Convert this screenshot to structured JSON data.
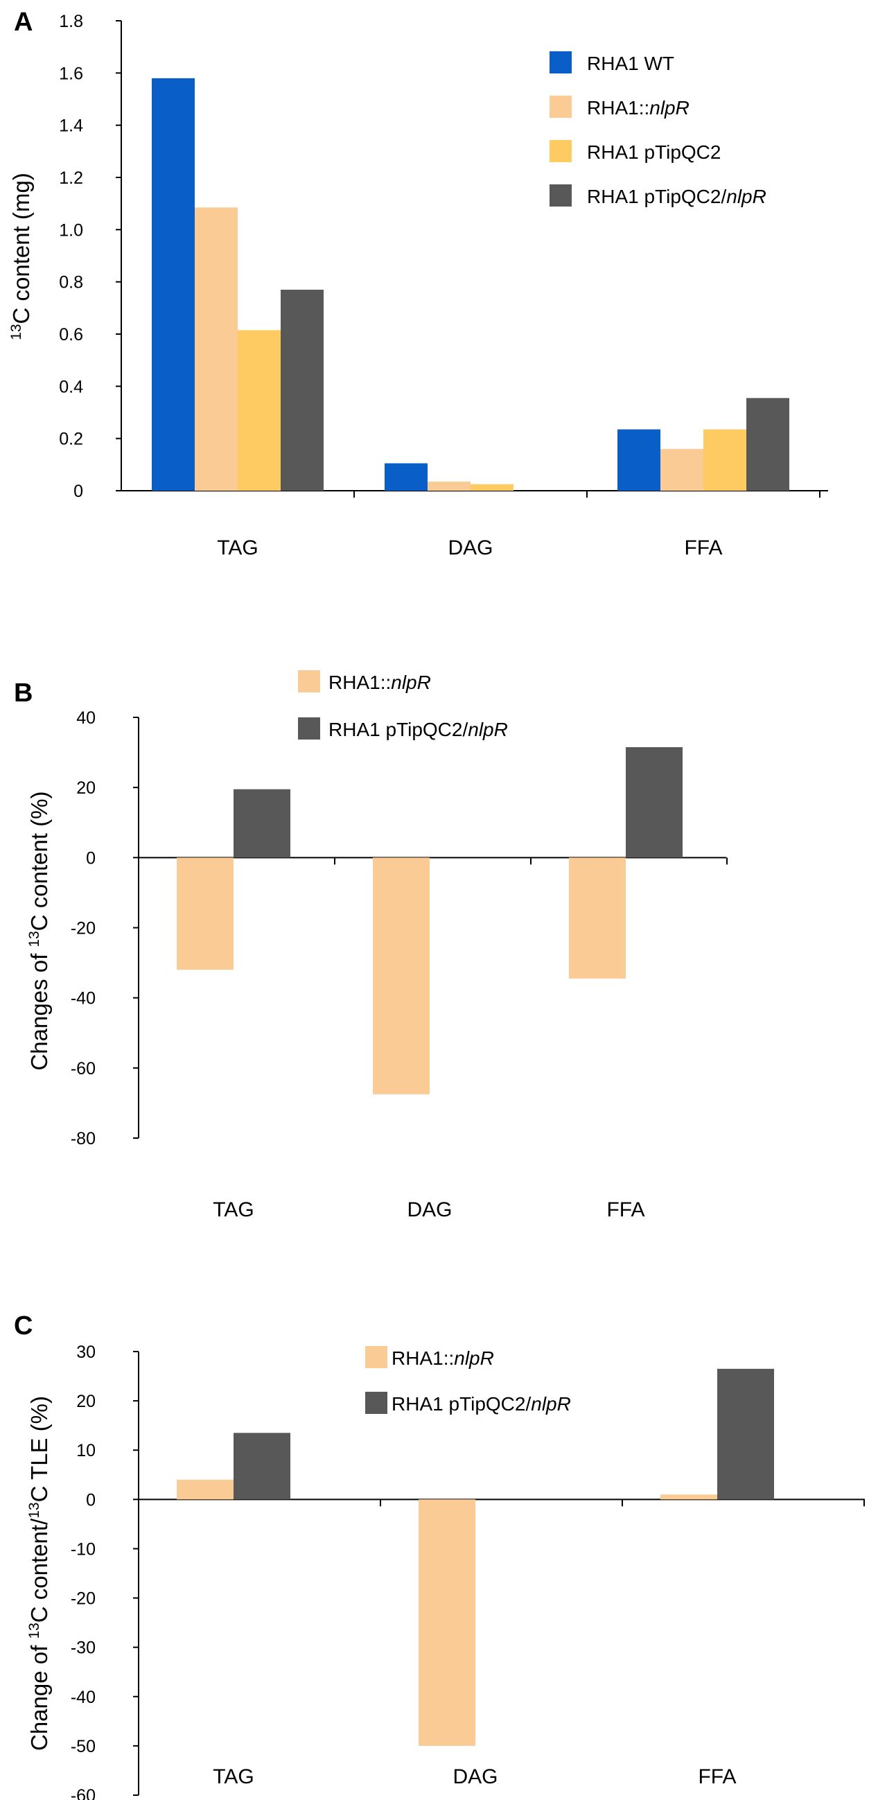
{
  "colors": {
    "RHA1 WT": "#0a5ec8",
    "RHA1::nlpR": "#fbcb96",
    "RHA1 pTipQC2": "#fecb62",
    "RHA1 pTipQC2/nlpR": "#585858"
  },
  "chart_data": [
    {
      "panel": "A",
      "type": "bar",
      "categories": [
        "TAG",
        "DAG",
        "FFA"
      ],
      "ylabel_sup": "13",
      "ylabel_main": "C content (mg)",
      "ylim": [
        0,
        1.8
      ],
      "yticks": [
        "0",
        "0.2",
        "0.4",
        "0.6",
        "0.8",
        "1.0",
        "1.2",
        "1.4",
        "1.6",
        "1.8"
      ],
      "legend": [
        {
          "series": "RHA1 WT",
          "base": "RHA1 WT",
          "italic": ""
        },
        {
          "series": "RHA1::nlpR",
          "base": "RHA1::",
          "italic": "nlpR"
        },
        {
          "series": "RHA1 pTipQC2",
          "base": "RHA1 pTipQC2",
          "italic": ""
        },
        {
          "series": "RHA1 pTipQC2/nlpR",
          "base": "RHA1 pTipQC2/",
          "italic": "nlpR"
        }
      ],
      "series": [
        {
          "name": "RHA1 WT",
          "values": [
            1.58,
            0.105,
            0.235
          ]
        },
        {
          "name": "RHA1::nlpR",
          "values": [
            1.085,
            0.035,
            0.16
          ]
        },
        {
          "name": "RHA1 pTipQC2",
          "values": [
            0.615,
            0.025,
            0.235
          ]
        },
        {
          "name": "RHA1 pTipQC2/nlpR",
          "values": [
            0.77,
            0,
            0.355
          ]
        }
      ]
    },
    {
      "panel": "B",
      "type": "bar",
      "categories": [
        "TAG",
        "DAG",
        "FFA"
      ],
      "ylabel_pre": "Changes of ",
      "ylabel_sup": "13",
      "ylabel_main": "C content (%)",
      "ylim": [
        -80,
        40
      ],
      "yticks": [
        "-80",
        "-60",
        "-40",
        "-20",
        "0",
        "20",
        "40"
      ],
      "legend": [
        {
          "series": "RHA1::nlpR",
          "base": "RHA1::",
          "italic": "nlpR"
        },
        {
          "series": "RHA1 pTipQC2/nlpR",
          "base": "RHA1 pTipQC2/",
          "italic": "nlpR"
        }
      ],
      "series": [
        {
          "name": "RHA1::nlpR",
          "values": [
            -32,
            -67.5,
            -34.5
          ]
        },
        {
          "name": "RHA1 pTipQC2/nlpR",
          "values": [
            19.5,
            0,
            31.5
          ]
        }
      ]
    },
    {
      "panel": "C",
      "type": "bar",
      "categories": [
        "TAG",
        "DAG",
        "FFA"
      ],
      "ylabel_pre": "Change of ",
      "ylabel_sup": "13",
      "ylabel_main": "C content/",
      "ylabel_sup2": "13",
      "ylabel_post": "C TLE (%)",
      "ylim": [
        -60,
        30
      ],
      "yticks": [
        "-60",
        "-50",
        "-40",
        "-30",
        "-20",
        "-10",
        "0",
        "10",
        "20",
        "30"
      ],
      "legend": [
        {
          "series": "RHA1::nlpR",
          "base": "RHA1::",
          "italic": "nlpR"
        },
        {
          "series": "RHA1 pTipQC2/nlpR",
          "base": "RHA1 pTipQC2/",
          "italic": "nlpR"
        }
      ],
      "series": [
        {
          "name": "RHA1::nlpR",
          "values": [
            4,
            -50,
            1
          ]
        },
        {
          "name": "RHA1 pTipQC2/nlpR",
          "values": [
            13.5,
            0,
            26.5
          ]
        }
      ]
    }
  ]
}
